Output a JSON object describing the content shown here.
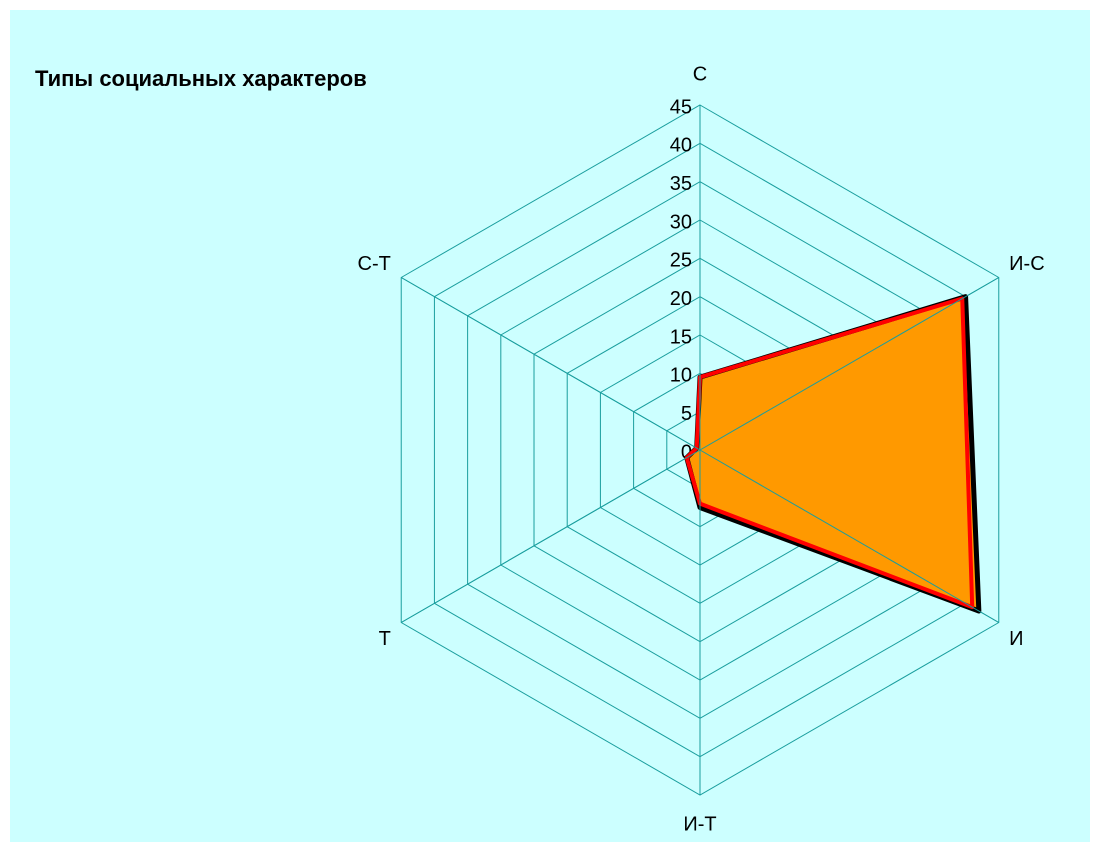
{
  "chart_data": {
    "type": "radar",
    "title": "Типы  социальных характеров",
    "categories": [
      "С",
      "И-С",
      "И",
      "И-Т",
      "Т",
      "С-Т"
    ],
    "series": [
      {
        "color": "#000000",
        "fill": "#ff9900",
        "values": [
          9.5,
          40,
          42,
          7.5,
          2,
          0.5
        ]
      },
      {
        "color": "#ff0000",
        "values": [
          9.5,
          39.5,
          41,
          7,
          2,
          0.5
        ]
      }
    ],
    "rlim": [
      0,
      45
    ],
    "rticks": [
      0,
      5,
      10,
      15,
      20,
      25,
      30,
      35,
      40,
      45
    ],
    "grid": true,
    "grid_color": "#1a9e9e"
  }
}
